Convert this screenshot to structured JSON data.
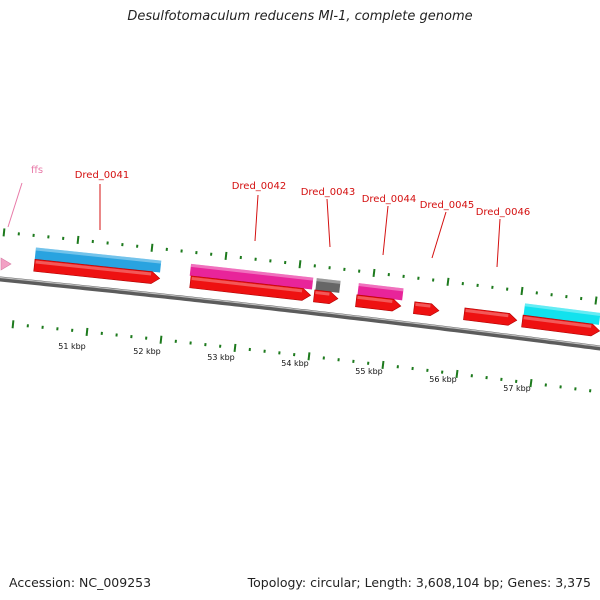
{
  "title": "Desulfotomaculum reducens MI-1, complete genome",
  "footer": {
    "accession": "Accession: NC_009253",
    "summary": "Topology: circular; Length: 3,608,104 bp; Genes: 3,375"
  },
  "colors": {
    "cds": "#ee1111",
    "blast_blue": "#29a3e0",
    "blast_magenta": "#e8249a",
    "blast_gray": "#666666",
    "blast_cyan": "#12e2ee",
    "rna": "#f2a0c4",
    "backbone": "#777777",
    "ticks": "#1d7a1d",
    "label_red": "#d41010",
    "label_pink": "#e87aa8"
  },
  "scale_labels": [
    "51 kbp",
    "52 kbp",
    "53 kbp",
    "54 kbp",
    "55 kbp",
    "56 kbp",
    "57 kbp"
  ],
  "gene_labels": [
    {
      "name": "ffs",
      "kind": "rna"
    },
    {
      "name": "Dred_0041",
      "kind": "cds"
    },
    {
      "name": "Dred_0042",
      "kind": "cds"
    },
    {
      "name": "Dred_0043",
      "kind": "cds"
    },
    {
      "name": "Dred_0044",
      "kind": "cds"
    },
    {
      "name": "Dred_0045",
      "kind": "cds"
    },
    {
      "name": "Dred_0046",
      "kind": "cds"
    }
  ],
  "cds_features": [
    {
      "id": "cds-1",
      "color_key": "cds"
    },
    {
      "id": "cds-2",
      "color_key": "cds"
    },
    {
      "id": "cds-3",
      "color_key": "cds"
    },
    {
      "id": "cds-4",
      "color_key": "cds"
    },
    {
      "id": "cds-5",
      "color_key": "cds"
    },
    {
      "id": "cds-6",
      "color_key": "cds"
    },
    {
      "id": "cds-7",
      "color_key": "cds"
    }
  ],
  "blast_hits": [
    {
      "id": "hit-blue",
      "color_key": "blast_blue"
    },
    {
      "id": "hit-magenta-1",
      "color_key": "blast_magenta"
    },
    {
      "id": "hit-gray",
      "color_key": "blast_gray"
    },
    {
      "id": "hit-magenta-2",
      "color_key": "blast_magenta"
    },
    {
      "id": "hit-cyan",
      "color_key": "blast_cyan"
    }
  ]
}
